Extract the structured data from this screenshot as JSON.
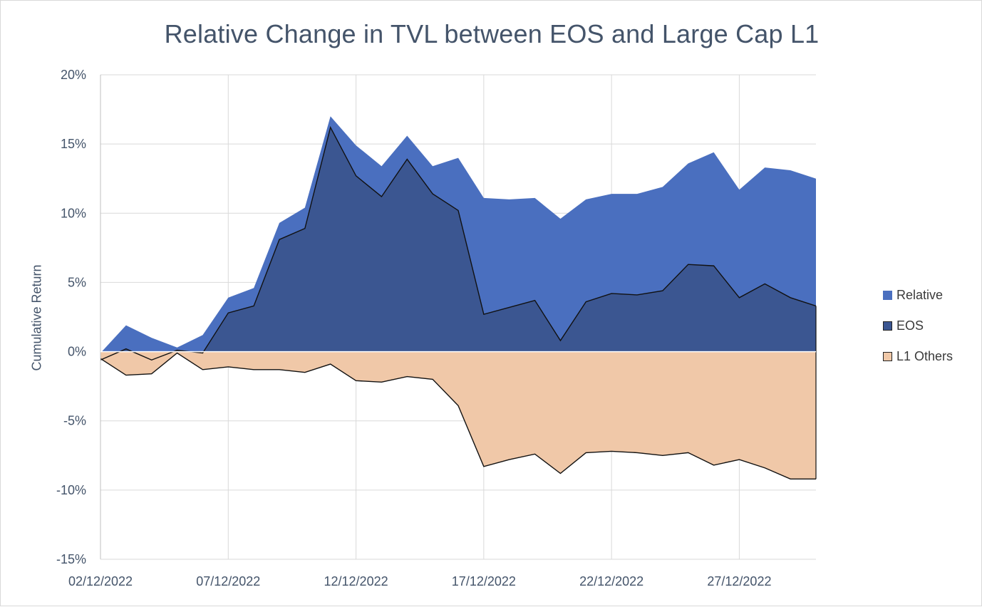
{
  "chart_data": {
    "type": "area",
    "title": "Relative Change in TVL between EOS and Large Cap L1",
    "ylabel": "Cumulative Return",
    "xlabel": "",
    "ylim": [
      -15,
      20
    ],
    "y_ticks": [
      "20%",
      "15%",
      "10%",
      "5%",
      "0%",
      "-5%",
      "-10%",
      "-15%"
    ],
    "y_tick_values": [
      20,
      15,
      10,
      5,
      0,
      -5,
      -10,
      -15
    ],
    "x_tick_labels": [
      "02/12/2022",
      "07/12/2022",
      "12/12/2022",
      "17/12/2022",
      "22/12/2022",
      "27/12/2022"
    ],
    "x": [
      "02/12/2022",
      "03/12/2022",
      "04/12/2022",
      "05/12/2022",
      "06/12/2022",
      "07/12/2022",
      "08/12/2022",
      "09/12/2022",
      "10/12/2022",
      "11/12/2022",
      "12/12/2022",
      "13/12/2022",
      "14/12/2022",
      "15/12/2022",
      "16/12/2022",
      "17/12/2022",
      "18/12/2022",
      "19/12/2022",
      "20/12/2022",
      "21/12/2022",
      "22/12/2022",
      "23/12/2022",
      "24/12/2022",
      "25/12/2022",
      "26/12/2022",
      "27/12/2022",
      "28/12/2022",
      "29/12/2022",
      "30/12/2022"
    ],
    "grid": true,
    "legend_position": "right",
    "series": [
      {
        "name": "Relative",
        "color": "#4a6fbf",
        "values": [
          -0.1,
          1.9,
          1.0,
          0.3,
          1.2,
          3.9,
          4.6,
          9.3,
          10.4,
          17.0,
          14.9,
          13.4,
          15.6,
          13.4,
          14.0,
          11.1,
          11.0,
          11.1,
          9.6,
          11.0,
          11.4,
          11.4,
          11.9,
          13.6,
          14.4,
          11.7,
          13.3,
          13.1,
          12.5
        ]
      },
      {
        "name": "EOS",
        "color": "#3b5691",
        "values": [
          -0.6,
          0.2,
          -0.6,
          0.1,
          -0.1,
          2.8,
          3.3,
          8.1,
          8.9,
          16.2,
          12.7,
          11.2,
          13.9,
          11.4,
          10.2,
          2.7,
          3.2,
          3.7,
          0.8,
          3.6,
          4.2,
          4.1,
          4.4,
          6.3,
          6.2,
          3.9,
          4.9,
          3.9,
          3.3
        ]
      },
      {
        "name": "L1 Others",
        "color": "#f0c8a8",
        "values": [
          -0.5,
          -1.7,
          -1.6,
          -0.1,
          -1.3,
          -1.1,
          -1.3,
          -1.3,
          -1.5,
          -0.9,
          -2.1,
          -2.2,
          -1.8,
          -2.0,
          -3.9,
          -8.3,
          -7.8,
          -7.4,
          -8.8,
          -7.3,
          -7.2,
          -7.3,
          -7.5,
          -7.3,
          -8.2,
          -7.8,
          -8.4,
          -9.2,
          -9.2
        ]
      }
    ]
  }
}
